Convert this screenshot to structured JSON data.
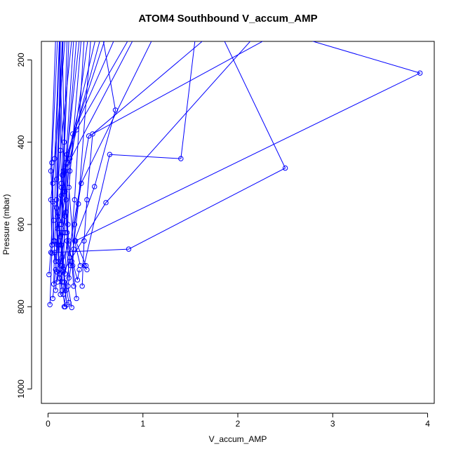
{
  "chart_data": {
    "type": "line",
    "title": "ATOM4 Southbound V_accum_AMP",
    "xlabel": "V_accum_AMP",
    "ylabel": "Pressure (mbar)",
    "xlim": [
      -0.07,
      4.07
    ],
    "ylim": [
      1035,
      155
    ],
    "y_reversed": true,
    "x_ticks": [
      0,
      1,
      2,
      3,
      4
    ],
    "y_ticks": [
      200,
      400,
      600,
      800,
      1000
    ],
    "grid": false,
    "series_color": "#0000FF",
    "marker": "open-circle",
    "profiles": [
      {
        "x": [
          0.15,
          0.13,
          0.18,
          0.14,
          0.17,
          0.2
        ],
        "y": [
          760,
          700,
          620,
          500,
          400,
          150
        ]
      },
      {
        "x": [
          0.18,
          0.12,
          0.22,
          0.17,
          0.3
        ],
        "y": [
          800,
          720,
          640,
          520,
          150
        ]
      },
      {
        "x": [
          0.05,
          0.08,
          0.1,
          0.07,
          0.12
        ],
        "y": [
          780,
          710,
          650,
          550,
          150
        ]
      },
      {
        "x": [
          0.02,
          0.04,
          0.06,
          0.03,
          0.08
        ],
        "y": [
          795,
          670,
          590,
          470,
          150
        ]
      },
      {
        "x": [
          0.01,
          0.03,
          0.05,
          0.04,
          0.1
        ],
        "y": [
          722,
          668,
          545,
          450,
          150
        ]
      },
      {
        "x": [
          0.25,
          0.21,
          0.27,
          0.22,
          0.35
        ],
        "y": [
          802,
          750,
          660,
          510,
          150
        ]
      },
      {
        "x": [
          0.33,
          0.31,
          0.2,
          0.23,
          0.42
        ],
        "y": [
          710,
          735,
          640,
          470,
          150
        ]
      },
      {
        "x": [
          0.22,
          0.15,
          0.12,
          0.16,
          0.55
        ],
        "y": [
          790,
          700,
          600,
          480,
          150
        ]
      },
      {
        "x": [
          0.1,
          0.16,
          0.14,
          0.2,
          0.6
        ],
        "y": [
          740,
          620,
          530,
          430,
          150
        ]
      },
      {
        "x": [
          0.08,
          0.11,
          0.09,
          0.15
        ],
        "y": [
          690,
          590,
          490,
          150
        ]
      },
      {
        "x": [
          0.16,
          0.18,
          0.21,
          0.26,
          0.7
        ],
        "y": [
          710,
          580,
          450,
          380,
          150
        ]
      },
      {
        "x": [
          0.14,
          0.19,
          0.23,
          0.3,
          0.85
        ],
        "y": [
          650,
          540,
          440,
          370,
          150
        ]
      },
      {
        "x": [
          0.3,
          0.26,
          0.28,
          0.35,
          1.1
        ],
        "y": [
          780,
          700,
          600,
          500,
          150
        ]
      },
      {
        "x": [
          0.36,
          0.38,
          0.41,
          0.47,
          1.65
        ],
        "y": [
          750,
          640,
          540,
          380,
          150
        ]
      },
      {
        "x": [
          0.41,
          0.38,
          0.65,
          1.4,
          1.55
        ],
        "y": [
          710,
          700,
          430,
          440,
          150
        ]
      },
      {
        "x": [
          0.34,
          0.28,
          0.49,
          0.71,
          0.58
        ],
        "y": [
          700,
          640,
          508,
          322,
          150
        ]
      },
      {
        "x": [
          0.07,
          0.85,
          2.5,
          1.85
        ],
        "y": [
          668,
          660,
          463,
          150
        ]
      },
      {
        "x": [
          0.4,
          0.29,
          3.92,
          2.72
        ],
        "y": [
          700,
          640,
          232,
          150
        ]
      },
      {
        "x": [
          0.12,
          0.61,
          2.15
        ],
        "y": [
          730,
          547,
          150
        ]
      },
      {
        "x": [
          0.18,
          0.43,
          2.3
        ],
        "y": [
          720,
          385,
          150
        ]
      },
      {
        "x": [
          0.19,
          0.15,
          0.1,
          0.13
        ],
        "y": [
          760,
          680,
          580,
          150
        ]
      },
      {
        "x": [
          0.13,
          0.11,
          0.14,
          0.12
        ],
        "y": [
          770,
          650,
          510,
          150
        ]
      },
      {
        "x": [
          0.06,
          0.07,
          0.09,
          0.16
        ],
        "y": [
          745,
          640,
          540,
          150
        ]
      },
      {
        "x": [
          0.24,
          0.2,
          0.18,
          0.27
        ],
        "y": [
          700,
          620,
          470,
          150
        ]
      },
      {
        "x": [
          0.27,
          0.25,
          0.32,
          0.45
        ],
        "y": [
          750,
          690,
          550,
          150
        ]
      },
      {
        "x": [
          0.2,
          0.17,
          0.14,
          0.22
        ],
        "y": [
          795,
          740,
          600,
          150
        ]
      },
      {
        "x": [
          0.09,
          0.06,
          0.05,
          0.18
        ],
        "y": [
          715,
          640,
          500,
          150
        ]
      },
      {
        "x": [
          0.17,
          0.23,
          0.28,
          0.38
        ],
        "y": [
          800,
          680,
          540,
          150
        ]
      },
      {
        "x": [
          0.11,
          0.09,
          0.13,
          0.25
        ],
        "y": [
          690,
          560,
          420,
          150
        ]
      },
      {
        "x": [
          0.15,
          0.14,
          0.17,
          0.5
        ],
        "y": [
          740,
          610,
          470,
          150
        ]
      },
      {
        "x": [
          0.04,
          0.03,
          0.07,
          0.12
        ],
        "y": [
          650,
          540,
          440,
          150
        ]
      },
      {
        "x": [
          0.16,
          0.21,
          0.19,
          0.33
        ],
        "y": [
          770,
          600,
          450,
          150
        ]
      },
      {
        "x": [
          0.12,
          0.1,
          0.15,
          0.9
        ],
        "y": [
          720,
          610,
          480,
          150
        ]
      },
      {
        "x": [
          0.22,
          0.19,
          0.16,
          0.12
        ],
        "y": [
          730,
          570,
          470,
          150
        ]
      },
      {
        "x": [
          0.08,
          0.13,
          0.18,
          0.15
        ],
        "y": [
          760,
          630,
          520,
          150
        ]
      }
    ]
  }
}
